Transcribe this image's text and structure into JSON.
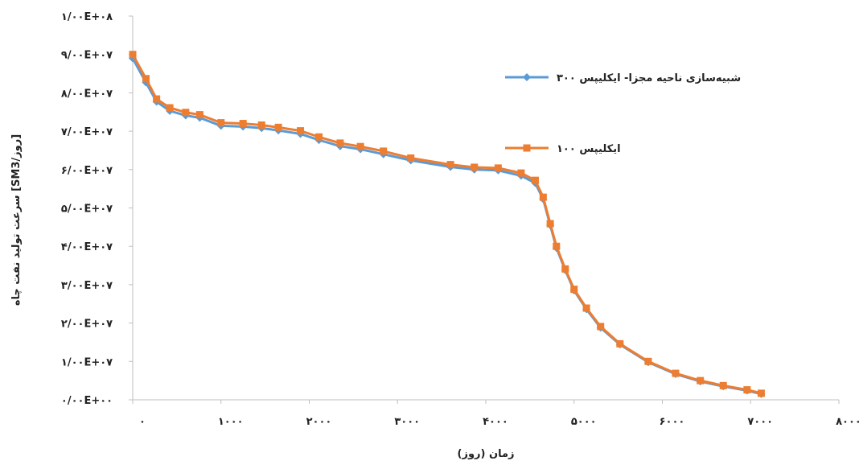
{
  "chart_data": {
    "type": "line",
    "xlabel": "زمان (روز)",
    "ylabel": "سرعت تولید نفت چاه [SM3/روز]",
    "xlim": [
      0,
      8000
    ],
    "ylim": [
      0,
      100000000
    ],
    "x_ticks": [
      {
        "value": 0,
        "label": "۰"
      },
      {
        "value": 1000,
        "label": "۱۰۰۰"
      },
      {
        "value": 2000,
        "label": "۲۰۰۰"
      },
      {
        "value": 3000,
        "label": "۳۰۰۰"
      },
      {
        "value": 4000,
        "label": "۴۰۰۰"
      },
      {
        "value": 5000,
        "label": "۵۰۰۰"
      },
      {
        "value": 6000,
        "label": "۶۰۰۰"
      },
      {
        "value": 7000,
        "label": "۷۰۰۰"
      },
      {
        "value": 8000,
        "label": "۸۰۰۰"
      }
    ],
    "y_ticks": [
      {
        "value": 0,
        "label": "۰/۰۰E+۰۰"
      },
      {
        "value": 10000000,
        "label": "۱/۰۰E+۰۷"
      },
      {
        "value": 20000000,
        "label": "۲/۰۰E+۰۷"
      },
      {
        "value": 30000000,
        "label": "۳/۰۰E+۰۷"
      },
      {
        "value": 40000000,
        "label": "۴/۰۰E+۰۷"
      },
      {
        "value": 50000000,
        "label": "۵/۰۰E+۰۷"
      },
      {
        "value": 60000000,
        "label": "۶/۰۰E+۰۷"
      },
      {
        "value": 70000000,
        "label": "۷/۰۰E+۰۷"
      },
      {
        "value": 80000000,
        "label": "۸/۰۰E+۰۷"
      },
      {
        "value": 90000000,
        "label": "۹/۰۰E+۰۷"
      },
      {
        "value": 100000000,
        "label": "۱/۰۰E+۰۸"
      }
    ],
    "legend_position": "top-right",
    "grid": false,
    "series": [
      {
        "name": "شبیه‌سازی ناحیه مجزا- ایکلیپس ۳۰۰",
        "color": "#5b9bd5",
        "marker": "diamond",
        "x": [
          0,
          150,
          270,
          420,
          600,
          760,
          1000,
          1250,
          1460,
          1650,
          1900,
          2110,
          2350,
          2580,
          2840,
          3150,
          3600,
          3870,
          4140,
          4400,
          4560,
          4650,
          4730,
          4800,
          4900,
          5000,
          5140,
          5300,
          5520,
          5840,
          6150,
          6430,
          6690,
          6960,
          7120
        ],
        "y": [
          89000000,
          82700000,
          77700000,
          75300000,
          74100000,
          73500000,
          71400000,
          71200000,
          70800000,
          70200000,
          69300000,
          67700000,
          66100000,
          65300000,
          64000000,
          62400000,
          60700000,
          60000000,
          59800000,
          58400000,
          56500000,
          52300000,
          45500000,
          39600000,
          33800000,
          28500000,
          23600000,
          18800000,
          14400000,
          9800000,
          6700000,
          4800000,
          3500000,
          2400000,
          1500000
        ]
      },
      {
        "name": "ایکلیپس ۱۰۰",
        "color": "#ed7d31",
        "marker": "square",
        "x": [
          0,
          150,
          270,
          420,
          600,
          760,
          1000,
          1250,
          1460,
          1650,
          1900,
          2110,
          2350,
          2580,
          2840,
          3150,
          3600,
          3870,
          4140,
          4400,
          4560,
          4650,
          4730,
          4800,
          4900,
          5000,
          5140,
          5300,
          5520,
          5840,
          6150,
          6430,
          6690,
          6960,
          7120
        ],
        "y": [
          90000000,
          83700000,
          78400000,
          76100000,
          74900000,
          74300000,
          72200000,
          72000000,
          71600000,
          71000000,
          70100000,
          68500000,
          66900000,
          66000000,
          64800000,
          63000000,
          61300000,
          60600000,
          60400000,
          59100000,
          57200000,
          52800000,
          45900000,
          40000000,
          34100000,
          28800000,
          23900000,
          19100000,
          14600000,
          10000000,
          6900000,
          5000000,
          3700000,
          2600000,
          1700000
        ]
      }
    ]
  }
}
